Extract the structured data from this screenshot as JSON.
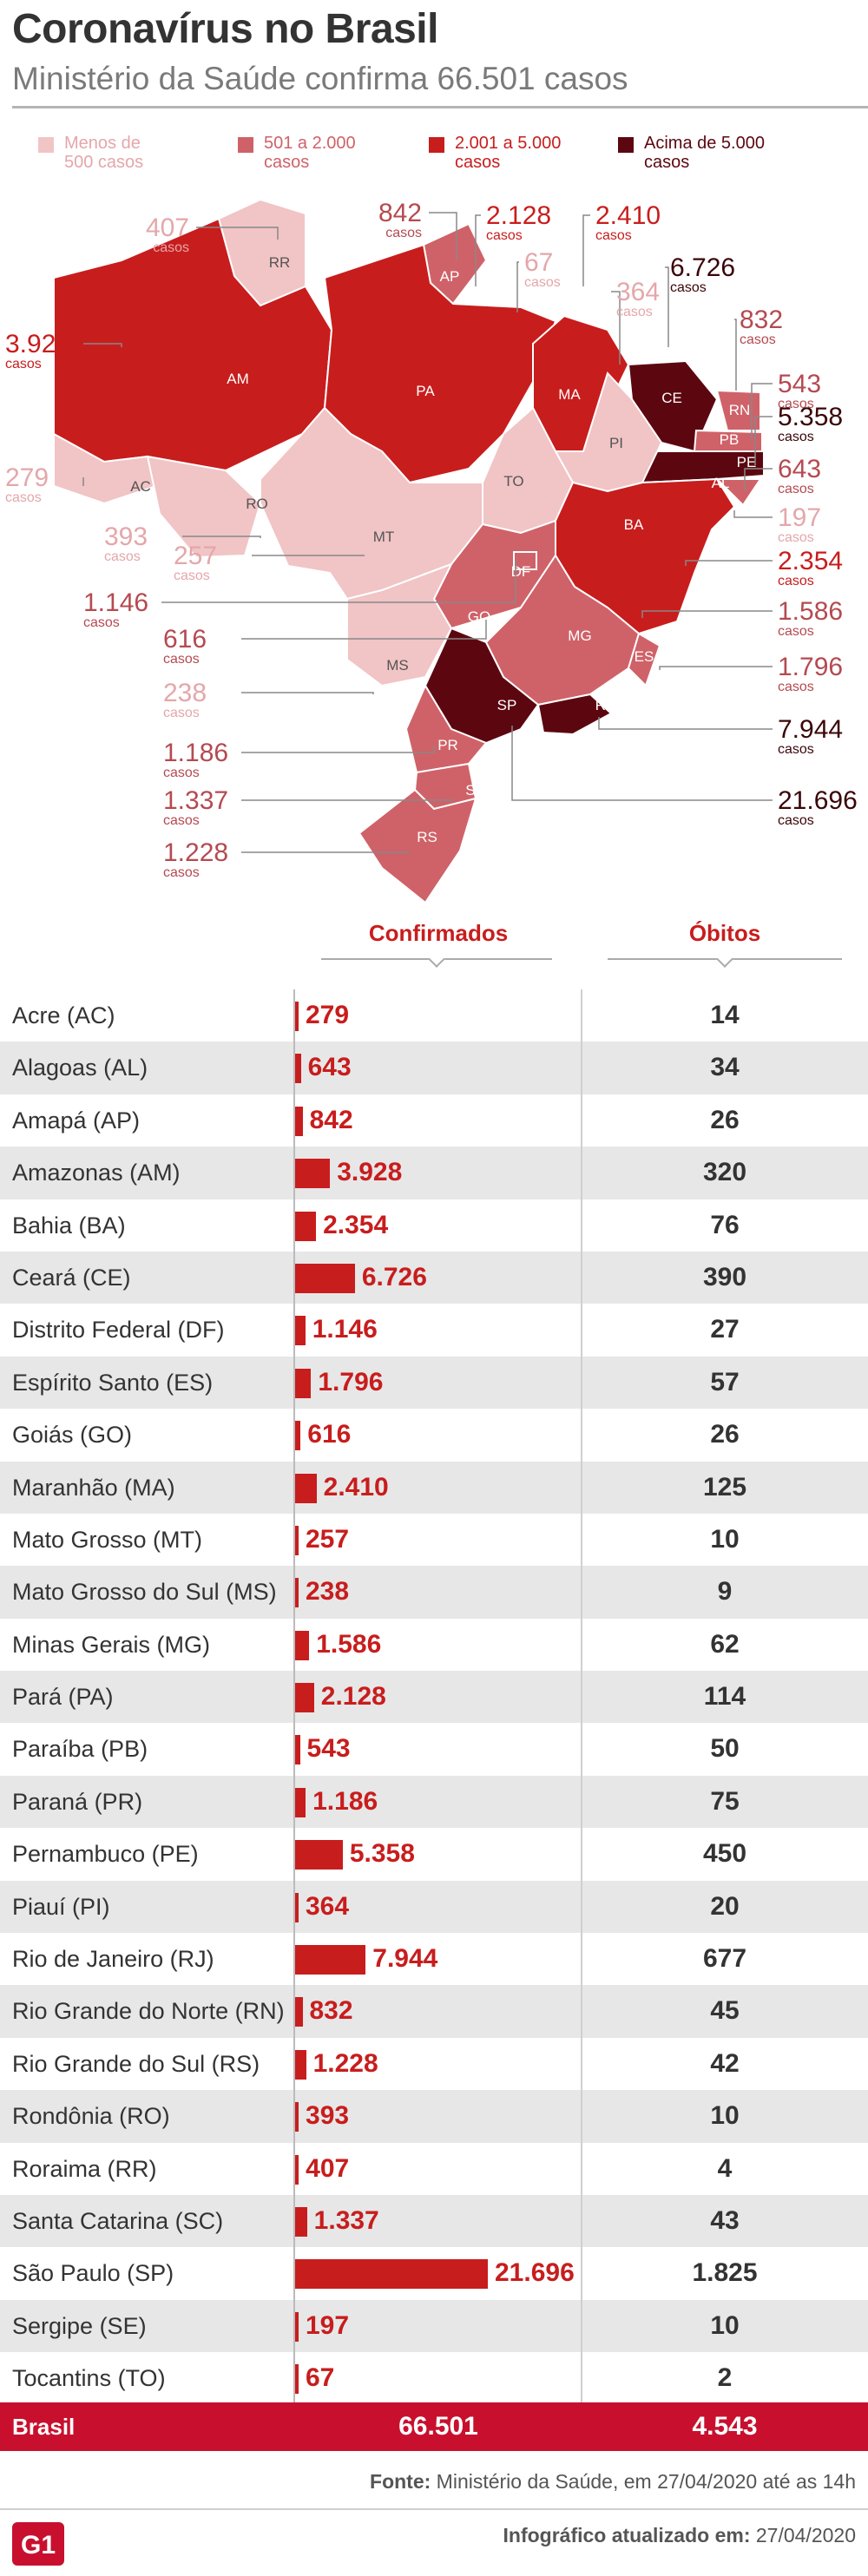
{
  "header": {
    "title": "Coronavírus no Brasil",
    "subtitle": "Ministério da Saúde confirma 66.501 casos"
  },
  "legend": [
    {
      "label": "Menos de\n500 casos",
      "color": "#f1c4c6"
    },
    {
      "label": "501 a 2.000\ncasos",
      "color": "#cf6268"
    },
    {
      "label": "2.001 a 5.000\ncasos",
      "color": "#c81d1d"
    },
    {
      "label": "Acima de 5.000\ncasos",
      "color": "#5c0710"
    }
  ],
  "map": {
    "casos_word": "casos",
    "callouts": [
      {
        "uf": "RR",
        "value": "407"
      },
      {
        "uf": "AP",
        "value": "842"
      },
      {
        "uf": "PA",
        "value": "2.128"
      },
      {
        "uf": "MA",
        "value": "2.410"
      },
      {
        "uf": "TO",
        "value": "67"
      },
      {
        "uf": "CE",
        "value": "6.726"
      },
      {
        "uf": "PI",
        "value": "364"
      },
      {
        "uf": "RN",
        "value": "832"
      },
      {
        "uf": "PB",
        "value": "543"
      },
      {
        "uf": "PE",
        "value": "5.358"
      },
      {
        "uf": "AL",
        "value": "643"
      },
      {
        "uf": "SE",
        "value": "197"
      },
      {
        "uf": "AM",
        "value": "3.928"
      },
      {
        "uf": "AC",
        "value": "279"
      },
      {
        "uf": "RO",
        "value": "393"
      },
      {
        "uf": "MT",
        "value": "257"
      },
      {
        "uf": "DF",
        "value": "1.146"
      },
      {
        "uf": "GO",
        "value": "616"
      },
      {
        "uf": "MS",
        "value": "238"
      },
      {
        "uf": "PR",
        "value": "1.186"
      },
      {
        "uf": "SC",
        "value": "1.337"
      },
      {
        "uf": "RS",
        "value": "1.228"
      },
      {
        "uf": "BA",
        "value": "2.354"
      },
      {
        "uf": "MG",
        "value": "1.586"
      },
      {
        "uf": "ES",
        "value": "1.796"
      },
      {
        "uf": "RJ",
        "value": "7.944"
      },
      {
        "uf": "SP",
        "value": "21.696"
      }
    ]
  },
  "colors": {
    "accent": "#c81d1d",
    "total_bar": "#c8102e",
    "row_alt": "#e7e7e7"
  },
  "table": {
    "col_confirmed": "Confirmados",
    "col_deaths": "Óbitos"
  },
  "chart_data": {
    "type": "bar",
    "categories": [
      "Acre (AC)",
      "Alagoas (AL)",
      "Amapá (AP)",
      "Amazonas (AM)",
      "Bahia (BA)",
      "Ceará (CE)",
      "Distrito Federal (DF)",
      "Espírito Santo (ES)",
      "Goiás (GO)",
      "Maranhão (MA)",
      "Mato Grosso (MT)",
      "Mato Grosso do Sul (MS)",
      "Minas Gerais (MG)",
      "Pará (PA)",
      "Paraíba (PB)",
      "Paraná (PR)",
      "Pernambuco (PE)",
      "Piauí (PI)",
      "Rio de Janeiro (RJ)",
      "Rio Grande do Norte (RN)",
      "Rio Grande do Sul (RS)",
      "Rondônia (RO)",
      "Roraima (RR)",
      "Santa Catarina (SC)",
      "São Paulo (SP)",
      "Sergipe (SE)",
      "Tocantins (TO)"
    ],
    "uf": [
      "AC",
      "AL",
      "AP",
      "AM",
      "BA",
      "CE",
      "DF",
      "ES",
      "GO",
      "MA",
      "MT",
      "MS",
      "MG",
      "PA",
      "PB",
      "PR",
      "PE",
      "PI",
      "RJ",
      "RN",
      "RS",
      "RO",
      "RR",
      "SC",
      "SP",
      "SE",
      "TO"
    ],
    "series": [
      {
        "name": "Confirmados",
        "values": [
          279,
          643,
          842,
          3928,
          2354,
          6726,
          1146,
          1796,
          616,
          2410,
          257,
          238,
          1586,
          2128,
          543,
          1186,
          5358,
          364,
          7944,
          832,
          1228,
          393,
          407,
          1337,
          21696,
          197,
          67
        ],
        "labels": [
          "279",
          "643",
          "842",
          "3.928",
          "2.354",
          "6.726",
          "1.146",
          "1.796",
          "616",
          "2.410",
          "257",
          "238",
          "1.586",
          "2.128",
          "543",
          "1.186",
          "5.358",
          "364",
          "7.944",
          "832",
          "1.228",
          "393",
          "407",
          "1.337",
          "21.696",
          "197",
          "67"
        ]
      },
      {
        "name": "Óbitos",
        "values": [
          14,
          34,
          26,
          320,
          76,
          390,
          27,
          57,
          26,
          125,
          10,
          9,
          62,
          114,
          50,
          75,
          450,
          20,
          677,
          45,
          42,
          10,
          4,
          43,
          1825,
          10,
          2
        ],
        "labels": [
          "14",
          "34",
          "26",
          "320",
          "76",
          "390",
          "27",
          "57",
          "26",
          "125",
          "10",
          "9",
          "62",
          "114",
          "50",
          "75",
          "450",
          "20",
          "677",
          "45",
          "42",
          "10",
          "4",
          "43",
          "1.825",
          "10",
          "2"
        ]
      }
    ],
    "total": {
      "label": "Brasil",
      "confirmed": "66.501",
      "deaths": "4.543"
    },
    "xlim": [
      0,
      21696
    ]
  },
  "footer": {
    "source_label": "Fonte:",
    "source_text": " Ministério da Saúde, em 27/04/2020 até as 14h",
    "updated_label": "Infográfico atualizado em:",
    "updated_text": " 27/04/2020",
    "logo_text": "G1"
  }
}
